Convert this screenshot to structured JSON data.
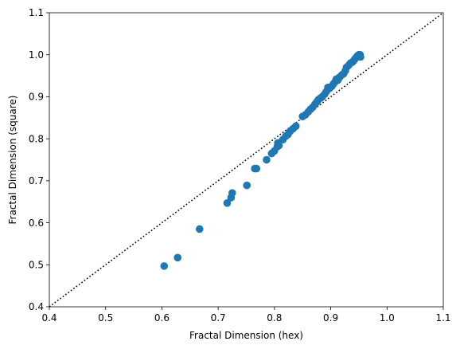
{
  "chart_data": {
    "type": "scatter",
    "xlabel": "Fractal Dimension (hex)",
    "ylabel": "Fractal Dimension (square)",
    "xlim": [
      0.4,
      1.1
    ],
    "ylim": [
      0.4,
      1.1
    ],
    "xticks": [
      "0.4",
      "0.5",
      "0.6",
      "0.7",
      "0.8",
      "0.9",
      "1.0",
      "1.1"
    ],
    "yticks": [
      "0.4",
      "0.5",
      "0.6",
      "0.7",
      "0.8",
      "0.9",
      "1.0",
      "1.1"
    ],
    "grid": false,
    "point_color": "#1f77b4",
    "reference_line": {
      "style": "dotted",
      "color": "#000000",
      "from": [
        0.4,
        0.4
      ],
      "to": [
        1.1,
        1.1
      ]
    },
    "points": [
      [
        0.604,
        0.497
      ],
      [
        0.628,
        0.517
      ],
      [
        0.667,
        0.585
      ],
      [
        0.716,
        0.647
      ],
      [
        0.723,
        0.66
      ],
      [
        0.725,
        0.671
      ],
      [
        0.751,
        0.689
      ],
      [
        0.765,
        0.729
      ],
      [
        0.768,
        0.729
      ],
      [
        0.786,
        0.75
      ],
      [
        0.795,
        0.765
      ],
      [
        0.8,
        0.771
      ],
      [
        0.805,
        0.781
      ],
      [
        0.806,
        0.79
      ],
      [
        0.808,
        0.784
      ],
      [
        0.815,
        0.798
      ],
      [
        0.82,
        0.806
      ],
      [
        0.824,
        0.81
      ],
      [
        0.828,
        0.818
      ],
      [
        0.833,
        0.824
      ],
      [
        0.838,
        0.83
      ],
      [
        0.85,
        0.853
      ],
      [
        0.855,
        0.857
      ],
      [
        0.86,
        0.864
      ],
      [
        0.864,
        0.87
      ],
      [
        0.868,
        0.875
      ],
      [
        0.872,
        0.882
      ],
      [
        0.875,
        0.887
      ],
      [
        0.878,
        0.893
      ],
      [
        0.882,
        0.897
      ],
      [
        0.885,
        0.9
      ],
      [
        0.889,
        0.906
      ],
      [
        0.892,
        0.912
      ],
      [
        0.895,
        0.922
      ],
      [
        0.898,
        0.92
      ],
      [
        0.902,
        0.925
      ],
      [
        0.905,
        0.931
      ],
      [
        0.908,
        0.936
      ],
      [
        0.91,
        0.942
      ],
      [
        0.913,
        0.94
      ],
      [
        0.916,
        0.947
      ],
      [
        0.92,
        0.952
      ],
      [
        0.923,
        0.955
      ],
      [
        0.926,
        0.962
      ],
      [
        0.928,
        0.97
      ],
      [
        0.932,
        0.975
      ],
      [
        0.935,
        0.98
      ],
      [
        0.938,
        0.982
      ],
      [
        0.941,
        0.986
      ],
      [
        0.943,
        0.99
      ],
      [
        0.946,
        0.995
      ],
      [
        0.948,
        0.998
      ],
      [
        0.95,
        1.0
      ],
      [
        0.952,
        1.0
      ],
      [
        0.953,
        0.995
      ],
      [
        0.951,
        0.996
      ]
    ]
  }
}
